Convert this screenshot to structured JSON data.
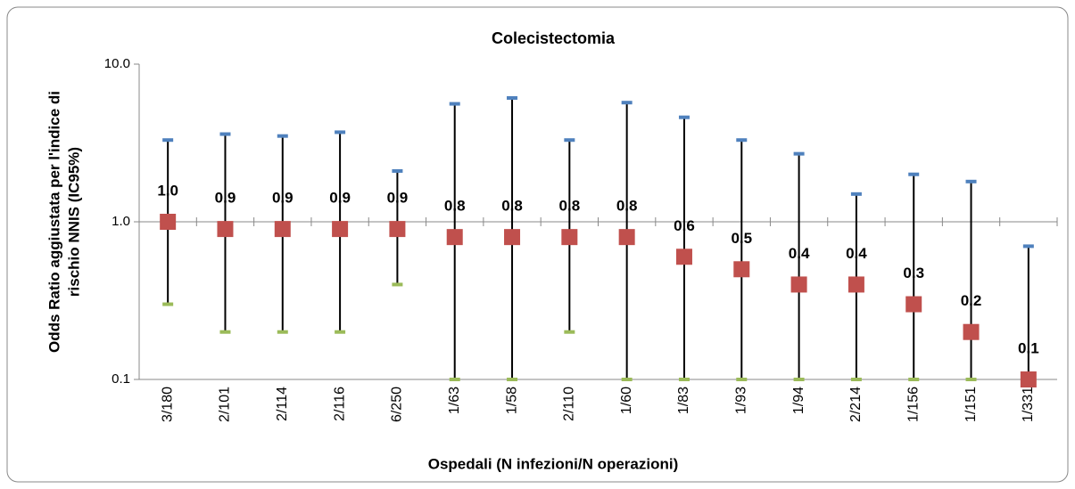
{
  "chart_data": {
    "type": "errorbar",
    "title": "Colecistectomia",
    "xlabel": "Ospedali (N infezioni/N operazioni)",
    "ylabel": [
      "Odds Ratio aggiustata per l'indice di",
      "rischio NNIS (IC95%)"
    ],
    "categories": [
      "3/180",
      "2/101",
      "2/114",
      "2/116",
      "6/250",
      "1/63",
      "1/58",
      "2/110",
      "1/60",
      "1/83",
      "1/93",
      "1/94",
      "2/214",
      "1/156",
      "1/151",
      "1/331"
    ],
    "values": [
      1.0,
      0.9,
      0.9,
      0.9,
      0.9,
      0.8,
      0.8,
      0.8,
      0.8,
      0.6,
      0.5,
      0.4,
      0.4,
      0.3,
      0.2,
      0.1
    ],
    "value_labels": [
      "1.0",
      "0.9",
      "0.9",
      "0.9",
      "0.9",
      "0.8",
      "0.8",
      "0.8",
      "0.8",
      "0.6",
      "0.5",
      "0.4",
      "0.4",
      "0.3",
      "0.2",
      "0.1"
    ],
    "upper": [
      3.3,
      3.6,
      3.5,
      3.7,
      2.1,
      5.6,
      6.1,
      3.3,
      5.7,
      4.6,
      3.3,
      2.7,
      1.5,
      2.0,
      1.8,
      0.7
    ],
    "lower": [
      0.3,
      0.2,
      0.2,
      0.2,
      0.4,
      0.1,
      0.1,
      0.2,
      0.1,
      0.1,
      0.1,
      0.1,
      0.1,
      0.1,
      0.1,
      0.1
    ],
    "color": "#c0504d",
    "upper_color": "#4f81bd",
    "lower_color": "#9bbb59",
    "log_y": true,
    "ylim": [
      0.1,
      10
    ],
    "yticks": [
      0.1,
      {
        "value": 1,
        "label": "1.0"
      },
      {
        "value": 10,
        "label": "10.0"
      }
    ]
  }
}
